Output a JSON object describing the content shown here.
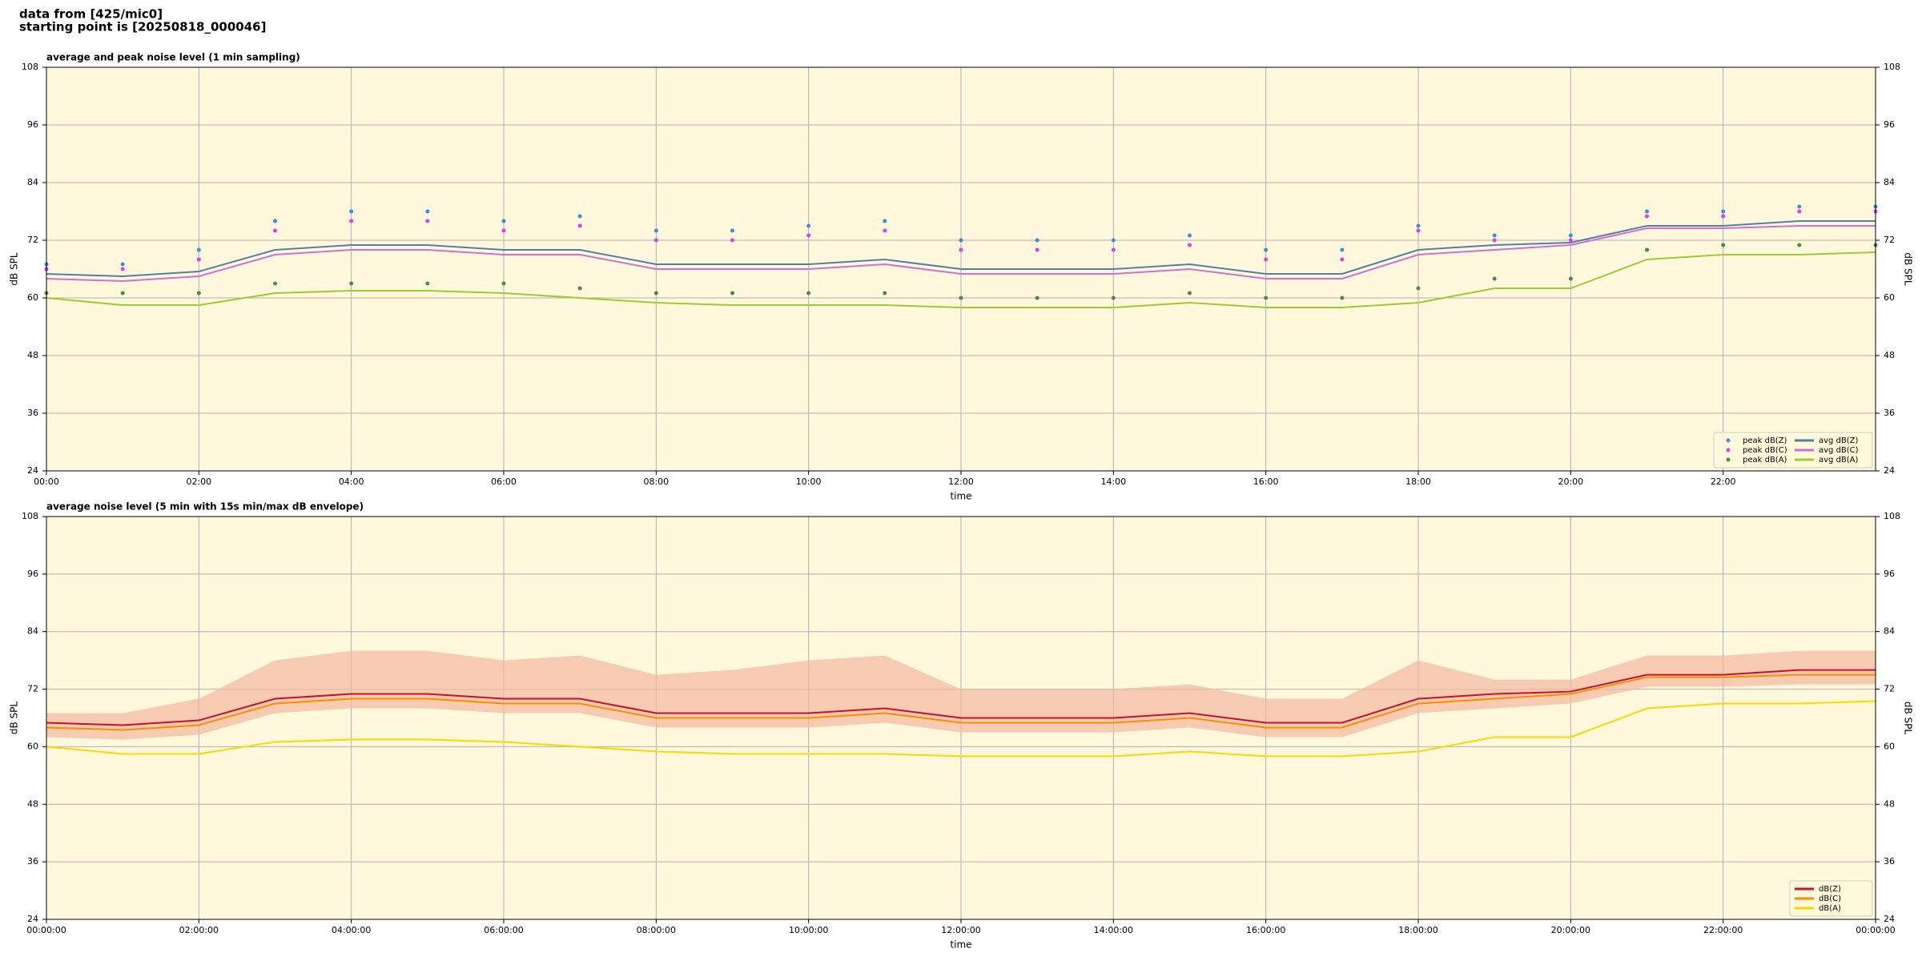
{
  "header": {
    "lines": [
      "data from [425/mic0]",
      "starting point is [20250818_000046]"
    ]
  },
  "chart_data": [
    {
      "type": "line",
      "title": "average and peak noise level (1 min sampling)",
      "xlabel": "time",
      "ylabel": "dB SPL",
      "xlim": [
        0,
        24
      ],
      "ylim": [
        24,
        108
      ],
      "xticks": [
        {
          "value": 0,
          "label": "00:00"
        },
        {
          "value": 2,
          "label": "02:00"
        },
        {
          "value": 4,
          "label": "04:00"
        },
        {
          "value": 6,
          "label": "06:00"
        },
        {
          "value": 8,
          "label": "08:00"
        },
        {
          "value": 10,
          "label": "10:00"
        },
        {
          "value": 12,
          "label": "12:00"
        },
        {
          "value": 14,
          "label": "14:00"
        },
        {
          "value": 16,
          "label": "16:00"
        },
        {
          "value": 18,
          "label": "18:00"
        },
        {
          "value": 20,
          "label": "20:00"
        },
        {
          "value": 22,
          "label": "22:00"
        }
      ],
      "yticks": [
        24,
        36,
        48,
        60,
        72,
        84,
        96,
        108
      ],
      "grid": true,
      "background": "#fff8dc",
      "legend": "lower right",
      "legend_columns": 2,
      "x": [
        0,
        1,
        2,
        3,
        4,
        5,
        6,
        7,
        8,
        9,
        10,
        11,
        12,
        13,
        14,
        15,
        16,
        17,
        18,
        19,
        20,
        21,
        22,
        23,
        24
      ],
      "series": [
        {
          "name": "peak dB(Z)",
          "type": "scatter",
          "color": "#3a8fd8",
          "values": [
            67,
            67,
            70,
            76,
            78,
            78,
            76,
            77,
            74,
            74,
            75,
            76,
            72,
            72,
            72,
            73,
            70,
            70,
            75,
            73,
            73,
            78,
            78,
            79,
            79
          ]
        },
        {
          "name": "peak dB(C)",
          "type": "scatter",
          "color": "#e040e0",
          "values": [
            66,
            66,
            68,
            74,
            76,
            76,
            74,
            75,
            72,
            72,
            73,
            74,
            70,
            70,
            70,
            71,
            68,
            68,
            74,
            72,
            72,
            77,
            77,
            78,
            78
          ]
        },
        {
          "name": "peak dB(A)",
          "type": "scatter",
          "color": "#4a8a4a",
          "values": [
            61,
            61,
            61,
            63,
            63,
            63,
            63,
            62,
            61,
            61,
            61,
            61,
            60,
            60,
            60,
            61,
            60,
            60,
            62,
            64,
            64,
            70,
            71,
            71,
            71
          ]
        },
        {
          "name": "avg dB(Z)",
          "type": "line",
          "color": "#5080a8",
          "values": [
            65,
            64.5,
            65.5,
            70,
            71,
            71,
            70,
            70,
            67,
            67,
            67,
            68,
            66,
            66,
            66,
            67,
            65,
            65,
            70,
            71,
            71.5,
            75,
            75,
            76,
            76
          ]
        },
        {
          "name": "avg dB(C)",
          "type": "line",
          "color": "#d070d0",
          "values": [
            64,
            63.5,
            64.5,
            69,
            70,
            70,
            69,
            69,
            66,
            66,
            66,
            67,
            65,
            65,
            65,
            66,
            64,
            64,
            69,
            70,
            71,
            74.5,
            74.5,
            75,
            75
          ]
        },
        {
          "name": "avg dB(A)",
          "type": "line",
          "color": "#9acd32",
          "values": [
            60,
            58.5,
            58.5,
            61,
            61.5,
            61.5,
            61,
            60,
            59,
            58.5,
            58.5,
            58.5,
            58,
            58,
            58,
            59,
            58,
            58,
            59,
            62,
            62,
            68,
            69,
            69,
            69.5
          ]
        }
      ]
    },
    {
      "type": "line",
      "title": "average noise level (5 min with 15s min/max dB envelope)",
      "xlabel": "time",
      "ylabel": "dB SPL",
      "xlim": [
        0,
        24
      ],
      "ylim": [
        24,
        108
      ],
      "xticks": [
        {
          "value": 0,
          "label": "00:00:00"
        },
        {
          "value": 2,
          "label": "02:00:00"
        },
        {
          "value": 4,
          "label": "04:00:00"
        },
        {
          "value": 6,
          "label": "06:00:00"
        },
        {
          "value": 8,
          "label": "08:00:00"
        },
        {
          "value": 10,
          "label": "10:00:00"
        },
        {
          "value": 12,
          "label": "12:00:00"
        },
        {
          "value": 14,
          "label": "14:00:00"
        },
        {
          "value": 16,
          "label": "16:00:00"
        },
        {
          "value": 18,
          "label": "18:00:00"
        },
        {
          "value": 20,
          "label": "20:00:00"
        },
        {
          "value": 22,
          "label": "22:00:00"
        },
        {
          "value": 24,
          "label": "00:00:00"
        }
      ],
      "yticks": [
        24,
        36,
        48,
        60,
        72,
        84,
        96,
        108
      ],
      "grid": true,
      "background": "#fff8dc",
      "legend": "lower right",
      "legend_columns": 1,
      "x": [
        0,
        1,
        2,
        3,
        4,
        5,
        6,
        7,
        8,
        9,
        10,
        11,
        12,
        13,
        14,
        15,
        16,
        17,
        18,
        19,
        20,
        21,
        22,
        23,
        24
      ],
      "band": {
        "color": "#f4b8a0",
        "upper": [
          67,
          67,
          70,
          78,
          80,
          80,
          78,
          79,
          75,
          76,
          78,
          79,
          72,
          72,
          72,
          73,
          70,
          70,
          78,
          74,
          74,
          79,
          79,
          80,
          80
        ],
        "lower": [
          62,
          61.5,
          62.5,
          67,
          68,
          68,
          67,
          67,
          64,
          64,
          64,
          65,
          63,
          63,
          63,
          64,
          62,
          62,
          67,
          68,
          69,
          72.5,
          72.5,
          73,
          73
        ]
      },
      "series": [
        {
          "name": "dB(Z)",
          "type": "line",
          "color": "#c8102e",
          "values": [
            65,
            64.5,
            65.5,
            70,
            71,
            71,
            70,
            70,
            67,
            67,
            67,
            68,
            66,
            66,
            66,
            67,
            65,
            65,
            70,
            71,
            71.5,
            75,
            75,
            76,
            76
          ]
        },
        {
          "name": "dB(C)",
          "type": "line",
          "color": "#ff8c00",
          "values": [
            64,
            63.5,
            64.5,
            69,
            70,
            70,
            69,
            69,
            66,
            66,
            66,
            67,
            65,
            65,
            65,
            66,
            64,
            64,
            69,
            70,
            71,
            74.5,
            74.5,
            75,
            75
          ]
        },
        {
          "name": "dB(A)",
          "type": "line",
          "color": "#ffd700",
          "values": [
            60,
            58.5,
            58.5,
            61,
            61.5,
            61.5,
            61,
            60,
            59,
            58.5,
            58.5,
            58.5,
            58,
            58,
            58,
            59,
            58,
            58,
            59,
            62,
            62,
            68,
            69,
            69,
            69.5
          ]
        }
      ]
    }
  ]
}
